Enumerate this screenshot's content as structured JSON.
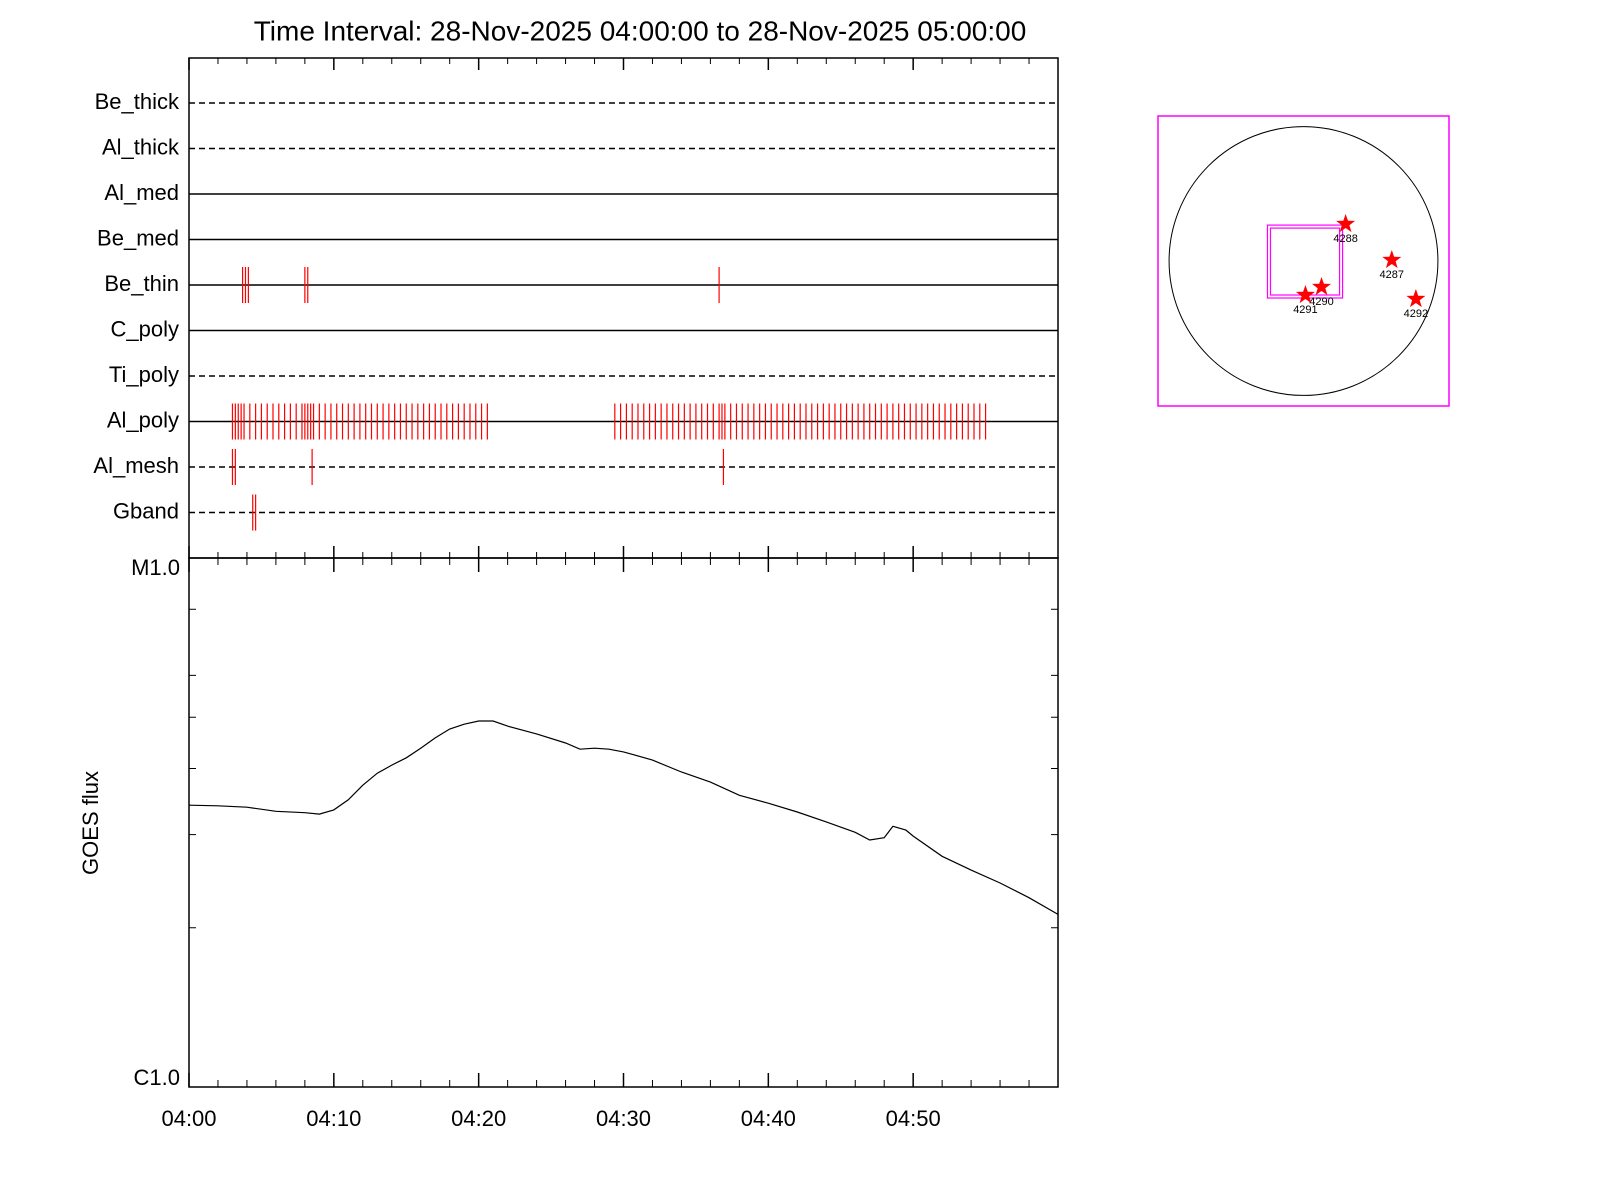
{
  "chart_data": [
    {
      "type": "event",
      "title": "Time Interval: 28-Nov-2025 04:00:00 to 28-Nov-2025 05:00:00",
      "color": "#ff0000",
      "rows": [
        {
          "name": "Be_thick",
          "style": "dashed",
          "events": []
        },
        {
          "name": "Al_thick",
          "style": "dashed",
          "events": []
        },
        {
          "name": "Al_med",
          "style": "solid",
          "events": []
        },
        {
          "name": "Be_med",
          "style": "solid",
          "events": []
        },
        {
          "name": "Be_thin",
          "style": "solid",
          "events": [
            3.7,
            3.9,
            4.1,
            8.0,
            8.2,
            36.6
          ]
        },
        {
          "name": "C_poly",
          "style": "solid",
          "events": []
        },
        {
          "name": "Ti_poly",
          "style": "dashed",
          "events": []
        },
        {
          "name": "Al_poly",
          "style": "solid",
          "events": [
            3.0,
            3.2,
            3.4,
            3.6,
            3.8,
            4.2,
            4.6,
            5.0,
            5.4,
            5.8,
            6.2,
            6.6,
            7.0,
            7.4,
            7.8,
            8.0,
            8.2,
            8.4,
            8.6,
            9.0,
            9.4,
            9.8,
            10.2,
            10.6,
            11.0,
            11.4,
            11.8,
            12.2,
            12.6,
            13.0,
            13.4,
            13.8,
            14.2,
            14.6,
            15.0,
            15.4,
            15.8,
            16.2,
            16.6,
            17.0,
            17.4,
            17.8,
            18.2,
            18.6,
            19.0,
            19.4,
            19.8,
            20.2,
            20.6,
            29.4,
            29.8,
            30.2,
            30.6,
            31.0,
            31.4,
            31.8,
            32.2,
            32.6,
            33.0,
            33.4,
            33.8,
            34.2,
            34.6,
            35.0,
            35.4,
            35.8,
            36.2,
            36.6,
            36.8,
            37.0,
            37.4,
            37.8,
            38.2,
            38.6,
            39.0,
            39.4,
            39.8,
            40.2,
            40.6,
            41.0,
            41.4,
            41.8,
            42.2,
            42.6,
            43.0,
            43.4,
            43.8,
            44.2,
            44.6,
            45.0,
            45.4,
            45.8,
            46.2,
            46.6,
            47.0,
            47.4,
            47.8,
            48.2,
            48.6,
            49.0,
            49.4,
            49.8,
            50.2,
            50.6,
            51.0,
            51.4,
            51.8,
            52.2,
            52.6,
            53.0,
            53.4,
            53.8,
            54.2,
            54.6,
            55.0
          ]
        },
        {
          "name": "Al_mesh",
          "style": "dashed",
          "events": [
            3.0,
            3.2,
            8.5,
            36.9
          ]
        },
        {
          "name": "Gband",
          "style": "dashed",
          "events": [
            4.4,
            4.6
          ]
        }
      ]
    },
    {
      "type": "line",
      "ylabel": "GOES flux",
      "log_y": true,
      "color": "#000000",
      "xlim": [
        0,
        60
      ],
      "xticks": [
        {
          "value": 0,
          "label": "04:00"
        },
        {
          "value": 10,
          "label": "04:10"
        },
        {
          "value": 20,
          "label": "04:20"
        },
        {
          "value": 30,
          "label": "04:30"
        },
        {
          "value": 40,
          "label": "04:40"
        },
        {
          "value": 50,
          "label": "04:50"
        }
      ],
      "minor_xticks": [
        2,
        4,
        6,
        8,
        12,
        14,
        16,
        18,
        22,
        24,
        26,
        28,
        32,
        34,
        36,
        38,
        42,
        44,
        46,
        48,
        52,
        54,
        56,
        58
      ],
      "ylim": [
        1e-06,
        1e-05
      ],
      "yticks": [
        {
          "value": 1e-05,
          "label": "M1.0"
        },
        {
          "value": 1e-06,
          "label": "C1.0"
        }
      ],
      "minor_yticks": [
        2e-06,
        3e-06,
        4e-06,
        5e-06,
        6e-06,
        8e-06
      ],
      "x": [
        0,
        2,
        4,
        6,
        8,
        9,
        10,
        11,
        12,
        13,
        14,
        15,
        16,
        17,
        18,
        19,
        20,
        21,
        22,
        24,
        26,
        27,
        28,
        29,
        30,
        32,
        34,
        36,
        38,
        40,
        42,
        44,
        46,
        47,
        48,
        48.6,
        49.5,
        50,
        52,
        54,
        56,
        58,
        60
      ],
      "values": [
        3.41e-06,
        3.4e-06,
        3.38e-06,
        3.32e-06,
        3.3e-06,
        3.28e-06,
        3.34e-06,
        3.49e-06,
        3.72e-06,
        3.92e-06,
        4.06e-06,
        4.19e-06,
        4.37e-06,
        4.57e-06,
        4.75e-06,
        4.85e-06,
        4.92e-06,
        4.92e-06,
        4.81e-06,
        4.65e-06,
        4.47e-06,
        4.35e-06,
        4.37e-06,
        4.35e-06,
        4.3e-06,
        4.15e-06,
        3.94e-06,
        3.77e-06,
        3.56e-06,
        3.44e-06,
        3.31e-06,
        3.17e-06,
        3.03e-06,
        2.93e-06,
        2.96e-06,
        3.11e-06,
        3.06e-06,
        2.98e-06,
        2.73e-06,
        2.57e-06,
        2.43e-06,
        2.28e-06,
        2.12e-06
      ]
    },
    {
      "type": "map",
      "color": "#ff00ff",
      "marker_color": "#ff0000",
      "xlim": [
        -1050,
        1050
      ],
      "ylim": [
        -1050,
        1050
      ],
      "disk_radius": 970,
      "fov": {
        "xlim": [
          -260,
          282
        ],
        "ylim": [
          -268,
          260
        ]
      },
      "regions": [
        {
          "label": "4288",
          "x": 304,
          "y": 268
        },
        {
          "label": "4287",
          "x": 637,
          "y": 7
        },
        {
          "label": "4290",
          "x": 130,
          "y": -188
        },
        {
          "label": "4291",
          "x": 14,
          "y": -246
        },
        {
          "label": "4292",
          "x": 811,
          "y": -275
        }
      ]
    }
  ]
}
